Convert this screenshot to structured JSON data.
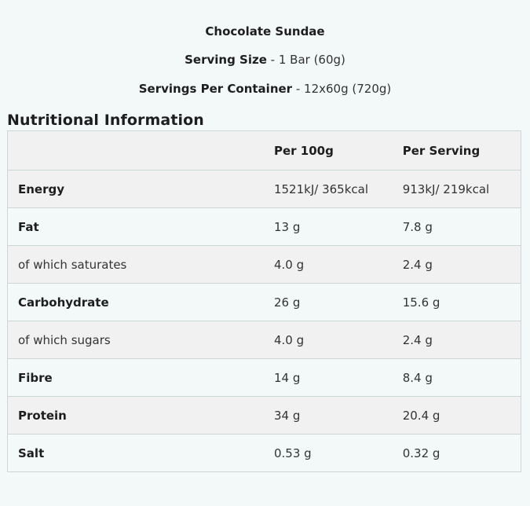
{
  "product": {
    "name": "Chocolate Sundae",
    "serving_size_label": "Serving Size",
    "serving_size_value": "1 Bar (60g)",
    "servings_label": "Servings Per Container",
    "servings_value": "12x60g (720g)"
  },
  "section_title": "Nutritional Information",
  "table": {
    "headers": [
      "",
      "Per 100g",
      "Per Serving"
    ],
    "rows": [
      {
        "label": "Energy",
        "per100": "1521kJ/ 365kcal",
        "perServing": "913kJ/ 219kcal",
        "bold": true
      },
      {
        "label": "Fat",
        "per100": "13 g",
        "perServing": "7.8 g",
        "bold": true
      },
      {
        "label": "of which saturates",
        "per100": "4.0 g",
        "perServing": "2.4 g",
        "bold": false
      },
      {
        "label": "Carbohydrate",
        "per100": "26 g",
        "perServing": "15.6 g",
        "bold": true
      },
      {
        "label": "of which sugars",
        "per100": "4.0 g",
        "perServing": "2.4 g",
        "bold": false
      },
      {
        "label": "Fibre",
        "per100": "14 g",
        "perServing": "8.4 g",
        "bold": true
      },
      {
        "label": "Protein",
        "per100": "34 g",
        "perServing": "20.4 g",
        "bold": true
      },
      {
        "label": "Salt",
        "per100": "0.53 g",
        "perServing": "0.32 g",
        "bold": true
      }
    ]
  }
}
